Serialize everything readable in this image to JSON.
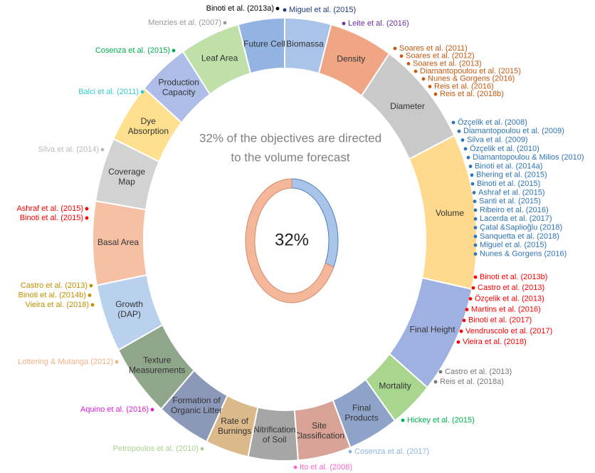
{
  "caption": [
    "32% of the objectives are directed",
    "to the volume forecast"
  ],
  "inner_ring": {
    "value": 32,
    "label": "32%",
    "colors": [
      "#a9c4e8",
      "#f4b79a"
    ]
  },
  "segments": [
    {
      "label": [
        "Biomassa"
      ],
      "color": "#a9c4e8"
    },
    {
      "label": [
        "Density"
      ],
      "color": "#f0a585"
    },
    {
      "label": [
        "Diameter"
      ],
      "color": "#c9c9c9"
    },
    {
      "label": [
        "Volume"
      ],
      "color": "#ffd98e"
    },
    {
      "label": [
        "Final Height"
      ],
      "color": "#9fb1e0"
    },
    {
      "label": [
        "Mortality"
      ],
      "color": "#a9d68e"
    },
    {
      "label": [
        "Final",
        "Products"
      ],
      "color": "#8fa3c9"
    },
    {
      "label": [
        "Site",
        "Classification"
      ],
      "color": "#d8a396"
    },
    {
      "label": [
        "Nitrification",
        "of Soil"
      ],
      "color": "#a6a6a6"
    },
    {
      "label": [
        "Rate of",
        "Burnings"
      ],
      "color": "#dcb98b"
    },
    {
      "label": [
        "Formation of",
        "Organic Litter"
      ],
      "color": "#8c98b8"
    },
    {
      "label": [
        "Texture",
        "Measurements"
      ],
      "color": "#8fa68b"
    },
    {
      "label": [
        "Growth",
        "(DAP)"
      ],
      "color": "#bad1ee"
    },
    {
      "label": [
        "Basal Area"
      ],
      "color": "#f6c0a5"
    },
    {
      "label": [
        "Coverage",
        "Map"
      ],
      "color": "#d2d2d2"
    },
    {
      "label": [
        "Dye",
        "Absorption"
      ],
      "color": "#ffe08f"
    },
    {
      "label": [
        "Production",
        "Capacity"
      ],
      "color": "#adbde8"
    },
    {
      "label": [
        "Leaf Area"
      ],
      "color": "#c0e0a9"
    },
    {
      "label": [
        "Future Cell"
      ],
      "color": "#93b3e3"
    }
  ],
  "ref_groups": [
    {
      "color": "#000000",
      "items": [
        "Binoti et al. (2013a)"
      ]
    },
    {
      "color": "#1f3b7a",
      "items": [
        "Miguel et al. (2015)"
      ]
    },
    {
      "color": "#7030a0",
      "items": [
        "Leite et al. (2016)"
      ]
    },
    {
      "color": "#999999",
      "items": [
        "Menzies et al. (2007)"
      ]
    },
    {
      "color": "#00b050",
      "items": [
        "Cosenza et al. (2015)"
      ]
    },
    {
      "color": "#33cccc",
      "items": [
        "Balci et al. (2011)"
      ]
    },
    {
      "color": "#bbbbbb",
      "items": [
        "Silva et al. (2014)"
      ]
    },
    {
      "color": "#ff0000",
      "items": [
        "Ashraf et al. (2015)",
        "Binoti et al. (2015)"
      ]
    },
    {
      "color": "#bf9000",
      "items": [
        "Castro et al. (2013)",
        "Binoti et al. (2014b)",
        "Vieira et al. (2018)"
      ]
    },
    {
      "color": "#f4b183",
      "items": [
        "Lottering & Mutanga (2012)"
      ]
    },
    {
      "color": "#e020e0",
      "items": [
        "Aquino et al. (2016)"
      ]
    },
    {
      "color": "#a9d18e",
      "items": [
        "Petropoulos et al. (2010)"
      ]
    },
    {
      "color": "#ff66cc",
      "items": [
        "Ito et al. (2008)"
      ]
    },
    {
      "color": "#8eb4e3",
      "items": [
        "Cosenza et al. (2017)"
      ]
    },
    {
      "color": "#00b050",
      "items": [
        "Hickey et al. (2015)"
      ]
    },
    {
      "color": "#777777",
      "items": [
        "Castro et al. (2013)",
        "Reis et al. (2018a)"
      ]
    },
    {
      "color": "#ff0000",
      "items": [
        "Binoti et al. (2013b)",
        "Castro et al. (2013)",
        "Özçelik et al. (2013)",
        "Martins et al. (2016)",
        "Binoti et al. (2017)",
        "Vendruscolo et al. (2017)",
        "Vieira et al. (2018)"
      ]
    },
    {
      "color": "#2e75b6",
      "items": [
        "Özçelik et al. (2008)",
        "Diamantopoulou et al. (2009)",
        "Silva et al. (2009)",
        "Özçelik et al. (2010)",
        "Diamantopoulou & Milios (2010)",
        "Binoti et al. (2014a)",
        "Bhering et al. (2015)",
        "Binoti et al. (2015)",
        "Ashraf et al. (2015)",
        "Santi et al. (2015)",
        "Ribeiro et al. (2016)",
        "Lacerda et al. (2017)",
        "Çatal &Saplioğlu (2018)",
        "Sanquetta et al. (2018)",
        "Miguel et al. (2015)",
        "Nunes & Gorgens (2016)"
      ]
    },
    {
      "color": "#c55a11",
      "items": [
        "Soares et al. (2011)",
        "Soares et al. (2012)",
        "Soares et al. (2013)",
        "Diamantopoulou et al. (2015)",
        "Nunes & Gorgens (2016)",
        "Reis et al. (2016)",
        "Reis et al. (2018b)"
      ]
    }
  ]
}
